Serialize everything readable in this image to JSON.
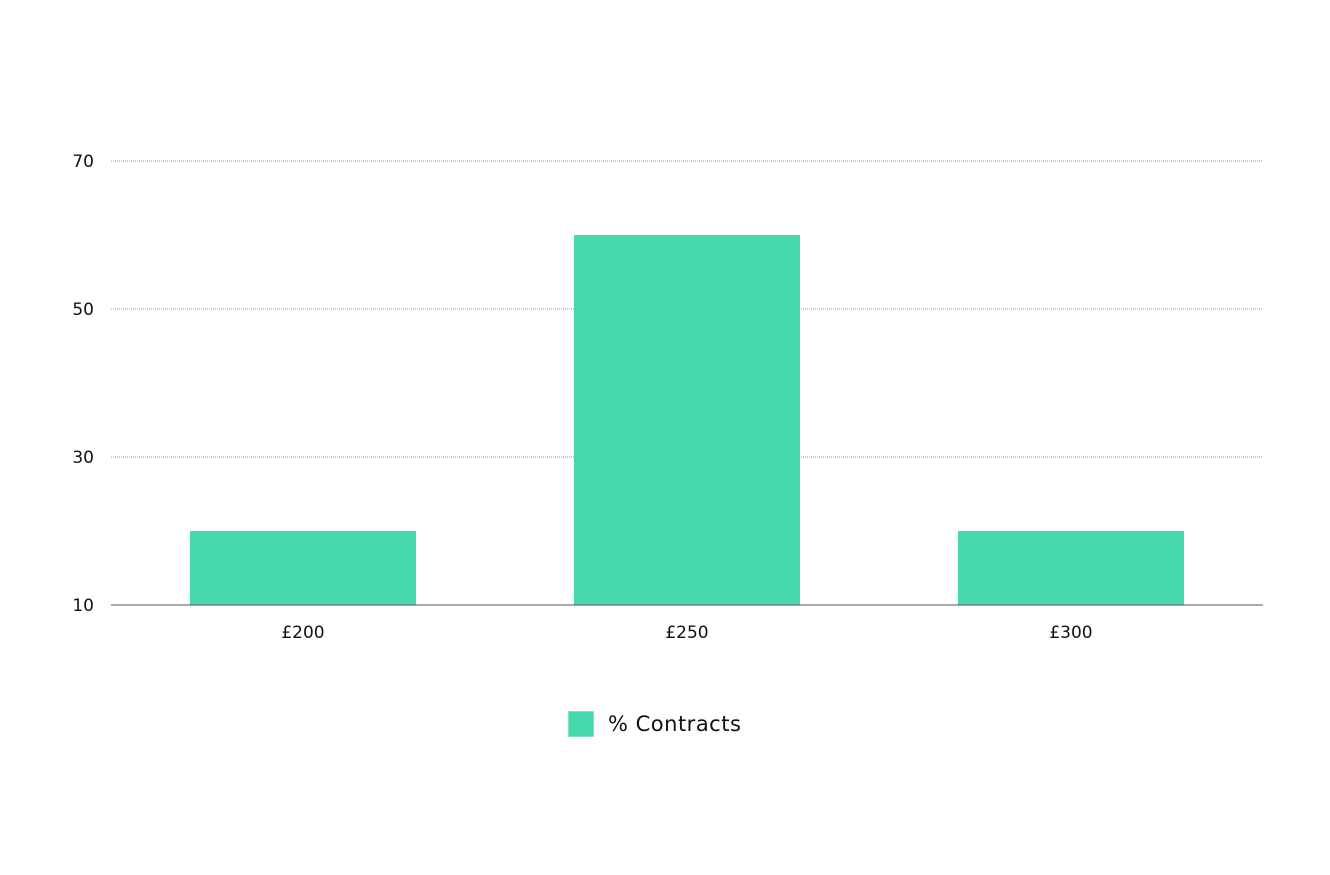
{
  "chart_data": {
    "type": "bar",
    "categories": [
      "£200",
      "£250",
      "£300"
    ],
    "series": [
      {
        "name": "% Contracts",
        "values": [
          20,
          60,
          20
        ]
      }
    ],
    "title": "",
    "xlabel": "",
    "ylabel": "",
    "ylim": [
      10,
      70
    ],
    "yticks": [
      {
        "value": 70,
        "label": "70"
      },
      {
        "value": 50,
        "label": "50"
      },
      {
        "value": 30,
        "label": "30"
      },
      {
        "value": 10,
        "label": "10"
      }
    ],
    "grid": true,
    "legend": "bottom-center",
    "colors": {
      "bar": "#48d8ae",
      "grid": "#999999",
      "axis": "#555555"
    }
  }
}
